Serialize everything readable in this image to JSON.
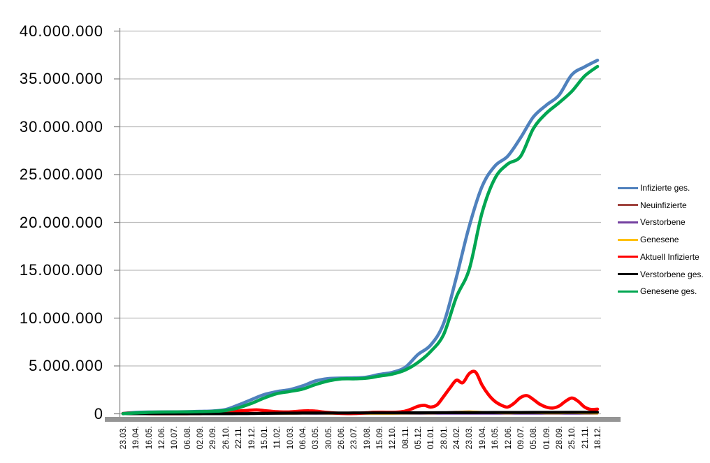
{
  "chart_data": {
    "type": "line",
    "title": "",
    "x_axis": {
      "labels": [
        "23.03.",
        "19.04.",
        "16.05.",
        "12.06.",
        "10.07.",
        "06.08.",
        "02.09.",
        "29.09.",
        "26.10.",
        "22.11.",
        "19.12.",
        "15.01.",
        "11.02.",
        "10.03.",
        "06.04.",
        "03.05.",
        "30.05.",
        "26.06.",
        "23.07.",
        "19.08.",
        "15.09.",
        "12.10.",
        "08.11.",
        "05.12.",
        "01.01.",
        "28.01.",
        "24.02.",
        "23.03.",
        "19.04.",
        "16.05.",
        "12.06.",
        "09.07.",
        "05.08.",
        "01.09.",
        "28.09.",
        "25.10.",
        "21.11.",
        "18.12."
      ]
    },
    "y_axis": {
      "labels": [
        "40.000.000",
        "35.000.000",
        "30.000.000",
        "25.000.000",
        "20.000.000",
        "15.000.000",
        "10.000.000",
        "5.000.000",
        "0"
      ],
      "min": 0,
      "max": 40000000,
      "tick_interval": 5000000
    },
    "grid": true,
    "legend_position": "right",
    "series": [
      {
        "name": "Infizierte ges.",
        "color": "#4F81BD",
        "x_step": 1,
        "line_width": 4.6,
        "values": [
          30000,
          140000,
          175000,
          187000,
          199000,
          214000,
          247000,
          289000,
          437000,
          919000,
          1470000,
          2000000,
          2320000,
          2520000,
          2910000,
          3430000,
          3680000,
          3730000,
          3750000,
          3830000,
          4110000,
          4330000,
          4840000,
          6190000,
          7190000,
          9440000,
          14270000,
          19600000,
          23750000,
          25900000,
          26920000,
          28840000,
          31020000,
          32250000,
          33300000,
          35440000,
          36260000,
          36950000
        ]
      },
      {
        "name": "Neuinfizierte",
        "color": "#A04540",
        "x_step": 1,
        "line_width": 2.6,
        "values": [
          4000,
          2000,
          600,
          350,
          400,
          700,
          1300,
          2000,
          11000,
          18000,
          25000,
          17000,
          9000,
          9000,
          20000,
          18000,
          7000,
          1000,
          1500,
          8000,
          10000,
          10000,
          30000,
          60000,
          30000,
          140000,
          210000,
          250000,
          160000,
          60000,
          30000,
          90000,
          70000,
          30000,
          50000,
          80000,
          30000,
          20000
        ]
      },
      {
        "name": "Verstorbene",
        "color": "#7440A0",
        "x_step": 1,
        "line_width": 2.6,
        "values": [
          30,
          200,
          80,
          30,
          10,
          10,
          10,
          15,
          50,
          300,
          700,
          900,
          600,
          250,
          200,
          250,
          150,
          80,
          30,
          20,
          60,
          80,
          170,
          370,
          350,
          180,
          250,
          300,
          250,
          150,
          80,
          100,
          120,
          120,
          100,
          150,
          150,
          130
        ]
      },
      {
        "name": "Genesene",
        "color": "#FFC000",
        "x_step": 1,
        "line_width": 2.6,
        "values": [
          2000,
          3500,
          1500,
          500,
          400,
          500,
          1000,
          1500,
          6000,
          14000,
          22000,
          21000,
          12000,
          8000,
          15000,
          19000,
          12000,
          3000,
          1000,
          5000,
          9000,
          9500,
          20000,
          45000,
          35000,
          90000,
          180000,
          240000,
          200000,
          90000,
          40000,
          70000,
          85000,
          45000,
          45000,
          75000,
          45000,
          25000
        ]
      },
      {
        "name": "Aktuell Infizierte",
        "color": "#FF0000",
        "x_step": 0.5,
        "line_width": 4.6,
        "values": [
          25000,
          70000,
          50000,
          25000,
          14000,
          10000,
          7000,
          6500,
          7000,
          8500,
          10000,
          12000,
          16000,
          20000,
          26000,
          45000,
          130000,
          210000,
          290000,
          330000,
          380000,
          400000,
          330000,
          270000,
          210000,
          190000,
          200000,
          240000,
          290000,
          310000,
          280000,
          200000,
          130000,
          80000,
          40000,
          25000,
          30000,
          60000,
          100000,
          150000,
          160000,
          150000,
          150000,
          180000,
          280000,
          500000,
          780000,
          880000,
          700000,
          950000,
          1800000,
          2700000,
          3500000,
          3250000,
          4200000,
          4350000,
          3000000,
          2000000,
          1300000,
          900000,
          700000,
          1100000,
          1700000,
          1900000,
          1500000,
          1000000,
          700000,
          600000,
          800000,
          1300000,
          1650000,
          1300000,
          700000,
          450000,
          480000
        ]
      },
      {
        "name": "Verstorbene ges.",
        "color": "#000000",
        "x_step": 1,
        "line_width": 4.2,
        "values": [
          130,
          4500,
          7900,
          8800,
          9100,
          9200,
          9300,
          9500,
          10100,
          14200,
          26000,
          46500,
          64000,
          72500,
          77000,
          83000,
          88000,
          90500,
          91400,
          91900,
          92700,
          94300,
          96900,
          103000,
          111600,
          117500,
          121800,
          127500,
          133600,
          137700,
          139700,
          141700,
          144000,
          146500,
          149000,
          152500,
          155600,
          160000
        ]
      },
      {
        "name": "Genesene ges.",
        "color": "#00A651",
        "x_step": 1,
        "line_width": 4.6,
        "values": [
          10000,
          88000,
          155000,
          174000,
          187000,
          200000,
          222000,
          256000,
          345000,
          620000,
          1080000,
          1640000,
          2100000,
          2330000,
          2580000,
          3050000,
          3430000,
          3640000,
          3660000,
          3720000,
          3940000,
          4150000,
          4570000,
          5360000,
          6520000,
          8280000,
          12200000,
          15100000,
          21000000,
          24600000,
          26100000,
          26900000,
          29800000,
          31400000,
          32500000,
          33700000,
          35300000,
          36300000
        ]
      }
    ]
  },
  "colors": {
    "background": "#ffffff",
    "gridline": "#BDBDBD",
    "axis": "#8A8A8A",
    "axis_band": "#959595",
    "text": "#000000"
  }
}
